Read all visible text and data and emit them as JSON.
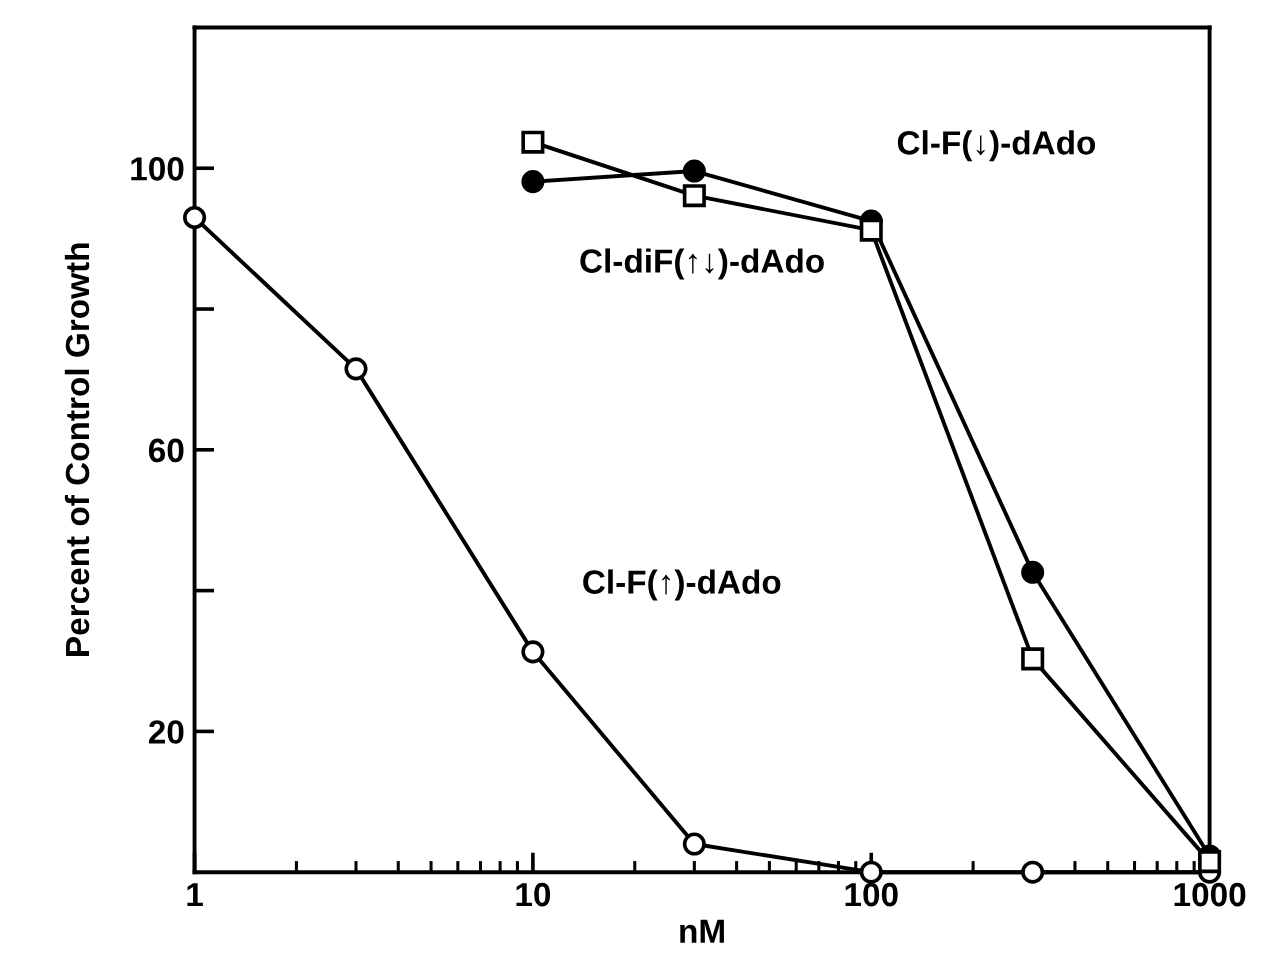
{
  "chart_data": {
    "type": "line",
    "xlabel": "nM",
    "ylabel": "Percent of Control Growth",
    "log": "x",
    "xlim": [
      1,
      1000
    ],
    "xticks": [
      1,
      10,
      100,
      1000
    ],
    "ylim": [
      0,
      120
    ],
    "yticks": [
      20,
      {
        "value": 40,
        "label": null
      },
      60,
      {
        "value": 80,
        "label": null
      },
      100
    ],
    "grid": false,
    "legend": false,
    "series": [
      {
        "name": "Cl-F(↑)-dAdo",
        "color": "#000000",
        "marker": "circle",
        "x": [
          1,
          3,
          10,
          30,
          100,
          300,
          1000
        ],
        "values": [
          93,
          71.5,
          31.3,
          4.0,
          0,
          0,
          0
        ]
      },
      {
        "name": "Cl-F(↓)-dAdo",
        "color": "#000000",
        "marker": "circle",
        "x": [
          10,
          30,
          100,
          300,
          1000
        ],
        "values": [
          98.1,
          99.6,
          92.5,
          42.6,
          2.3
        ]
      },
      {
        "name": "Cl-diF(↑↓)-dAdo",
        "color": "#000000",
        "marker": "square",
        "x": [
          10,
          30,
          100,
          300,
          1000
        ],
        "values": [
          103.7,
          96.1,
          91.2,
          30.3,
          1.5
        ]
      }
    ]
  }
}
